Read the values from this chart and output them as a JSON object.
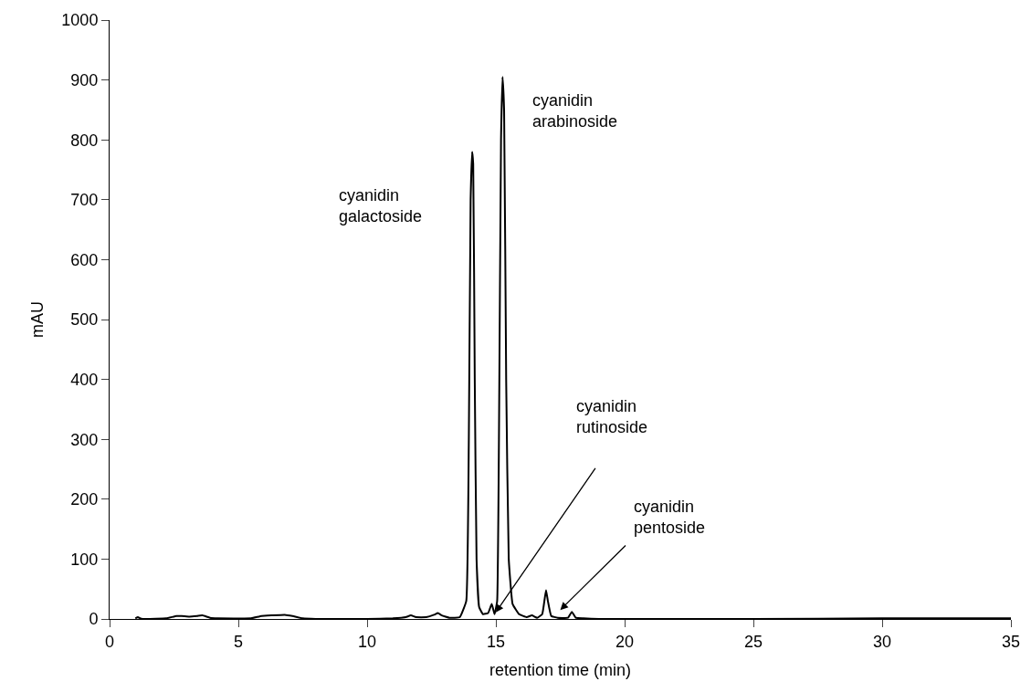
{
  "chart_data": {
    "type": "line",
    "xlabel": "retention time (min)",
    "ylabel": "mAU",
    "xlim": [
      0,
      35
    ],
    "xticks": [
      0,
      5,
      10,
      15,
      20,
      25,
      30,
      35
    ],
    "ylim": [
      0,
      1000
    ],
    "yticks": [
      0,
      100,
      200,
      300,
      400,
      500,
      600,
      700,
      800,
      900,
      1000
    ],
    "legend": false,
    "marker": "none",
    "line_style": "solid",
    "series": [
      {
        "color": "#000000",
        "x": [
          1.0,
          1.1,
          1.2,
          1.4,
          2.2,
          2.6,
          2.8,
          3.1,
          3.4,
          3.6,
          3.9,
          4.2,
          5.5,
          5.9,
          6.3,
          6.8,
          7.1,
          7.5,
          8.0,
          10.0,
          11.0,
          11.5,
          11.7,
          11.9,
          12.3,
          12.6,
          12.75,
          12.9,
          13.2,
          13.6,
          13.85,
          13.95,
          14.02,
          14.08,
          14.12,
          14.18,
          14.25,
          14.35,
          14.5,
          14.7,
          14.84,
          14.95,
          15.05,
          15.12,
          15.2,
          15.26,
          15.32,
          15.4,
          15.5,
          15.65,
          15.9,
          16.2,
          16.4,
          16.6,
          16.8,
          16.9,
          16.95,
          17.02,
          17.15,
          17.4,
          17.8,
          17.95,
          18.1,
          18.4,
          19.0,
          20.0,
          25.0,
          30.0,
          35.0
        ],
        "values": [
          1,
          3,
          1,
          0,
          1,
          5,
          5,
          4,
          5,
          6,
          2,
          1,
          1,
          5,
          6,
          7,
          5,
          1,
          0,
          0,
          1,
          3,
          6,
          3,
          3,
          7,
          10,
          6,
          2,
          3,
          30,
          300,
          700,
          780,
          760,
          400,
          100,
          20,
          8,
          10,
          25,
          8,
          30,
          300,
          800,
          905,
          850,
          400,
          100,
          25,
          8,
          3,
          6,
          2,
          8,
          35,
          48,
          30,
          5,
          2,
          2,
          12,
          2,
          1,
          0,
          0,
          0,
          1,
          1
        ]
      }
    ],
    "annotations": [
      "cyanidin\ngalactoside",
      "cyanidin\narabinoside",
      "cyanidin\nrutinoside",
      "cyanidin\npentoside"
    ]
  }
}
